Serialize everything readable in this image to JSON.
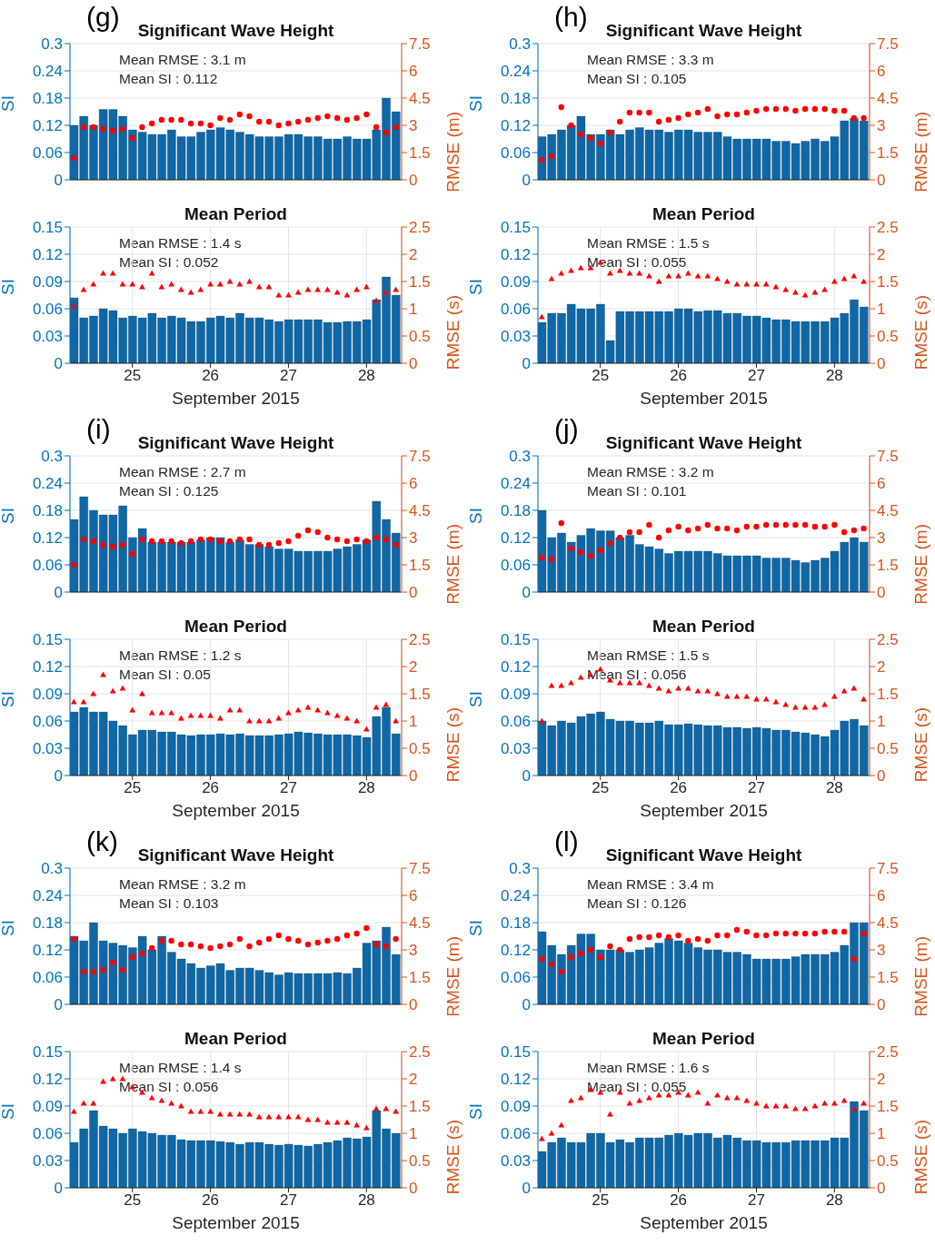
{
  "chart_data": [
    {
      "type": "bar",
      "title": "Significant Wave Height",
      "ylabel": "SI",
      "y2label": "RMSE (m)",
      "annotations": [
        "(g)",
        "Mean RMSE : 3.1 m",
        "Mean SI : 0.112"
      ],
      "xlim": [
        24.2,
        28.45
      ],
      "xticks": [
        25,
        26,
        27,
        28
      ],
      "ylim": [
        0,
        0.3
      ],
      "yticks": [
        0,
        0.06,
        0.12,
        0.18,
        0.24,
        0.3
      ],
      "y2lim": [
        0,
        7.5
      ],
      "y2ticks": [
        0,
        1.5,
        3,
        4.5,
        6,
        7.5
      ],
      "grid": true,
      "tick_labels": "y",
      "x": [
        24.25,
        24.375,
        24.5,
        24.625,
        24.75,
        24.875,
        25,
        25.125,
        25.25,
        25.375,
        25.5,
        25.625,
        25.75,
        25.875,
        26,
        26.125,
        26.25,
        26.375,
        26.5,
        26.625,
        26.75,
        26.875,
        27,
        27.125,
        27.25,
        27.375,
        27.5,
        27.625,
        27.75,
        27.875,
        28,
        28.125,
        28.25,
        28.375
      ],
      "series": [
        {
          "type": "bar",
          "color": "#0f67a6",
          "values": [
            0.12,
            0.14,
            0.12,
            0.155,
            0.155,
            0.14,
            0.11,
            0.105,
            0.1,
            0.1,
            0.11,
            0.095,
            0.095,
            0.105,
            0.11,
            0.115,
            0.11,
            0.105,
            0.1,
            0.095,
            0.095,
            0.095,
            0.1,
            0.1,
            0.095,
            0.095,
            0.09,
            0.09,
            0.095,
            0.09,
            0.09,
            0.11,
            0.18,
            0.15
          ]
        },
        {
          "type": "scatter",
          "axis": "y2",
          "marker": "circle",
          "color": "#ff0000",
          "values": [
            1.2,
            2.9,
            2.9,
            2.8,
            2.7,
            2.8,
            2.3,
            2.9,
            3.1,
            3.3,
            3.3,
            3.3,
            3.1,
            3.1,
            3,
            3.4,
            3.3,
            3.6,
            3.5,
            3.2,
            3.2,
            3,
            3.1,
            3.2,
            3.3,
            3.4,
            3.5,
            3.4,
            3.3,
            3.4,
            3.6,
            2.9,
            2.6,
            2.9
          ]
        }
      ]
    },
    {
      "type": "bar",
      "title": "Significant Wave Height",
      "ylabel": "SI",
      "y2label": "RMSE (m)",
      "annotations": [
        "(h)",
        "Mean RMSE : 3.3 m",
        "Mean SI : 0.105"
      ],
      "xlim": [
        24.2,
        28.45
      ],
      "xticks": [
        25,
        26,
        27,
        28
      ],
      "ylim": [
        0,
        0.3
      ],
      "yticks": [
        0,
        0.06,
        0.12,
        0.18,
        0.24,
        0.3
      ],
      "y2lim": [
        0,
        7.5
      ],
      "y2ticks": [
        0,
        1.5,
        3,
        4.5,
        6,
        7.5
      ],
      "grid": true,
      "tick_labels": "y",
      "x": [
        24.25,
        24.375,
        24.5,
        24.625,
        24.75,
        24.875,
        25,
        25.125,
        25.25,
        25.375,
        25.5,
        25.625,
        25.75,
        25.875,
        26,
        26.125,
        26.25,
        26.375,
        26.5,
        26.625,
        26.75,
        26.875,
        27,
        27.125,
        27.25,
        27.375,
        27.5,
        27.625,
        27.75,
        27.875,
        28,
        28.125,
        28.25,
        28.375
      ],
      "series": [
        {
          "type": "bar",
          "color": "#0f67a6",
          "values": [
            0.095,
            0.1,
            0.11,
            0.12,
            0.14,
            0.1,
            0.1,
            0.11,
            0.1,
            0.11,
            0.115,
            0.11,
            0.11,
            0.105,
            0.11,
            0.11,
            0.105,
            0.105,
            0.105,
            0.095,
            0.09,
            0.09,
            0.09,
            0.09,
            0.085,
            0.085,
            0.08,
            0.085,
            0.09,
            0.085,
            0.095,
            0.13,
            0.135,
            0.13
          ]
        },
        {
          "type": "scatter",
          "axis": "y2",
          "marker": "circle",
          "color": "#ff0000",
          "values": [
            1.1,
            1.3,
            4,
            3,
            2.5,
            2.3,
            2,
            2.6,
            3.2,
            3.7,
            3.7,
            3.7,
            3.2,
            3.3,
            3.4,
            3.6,
            3.7,
            3.9,
            3.5,
            3.6,
            3.6,
            3.7,
            3.8,
            3.9,
            3.9,
            3.9,
            3.8,
            3.9,
            3.9,
            3.9,
            3.8,
            3.8,
            3.4,
            3.4
          ]
        }
      ]
    },
    {
      "type": "bar",
      "title": "Mean Period",
      "ylabel": "SI",
      "y2label": "RMSE (s)",
      "xlabel": "September 2015",
      "annotations": [
        "Mean RMSE : 1.4 s",
        "Mean SI : 0.052"
      ],
      "xlim": [
        24.2,
        28.45
      ],
      "xticks": [
        25,
        26,
        27,
        28
      ],
      "ylim": [
        0,
        0.15
      ],
      "yticks": [
        0,
        0.03,
        0.06,
        0.09,
        0.12,
        0.15
      ],
      "y2lim": [
        0,
        2.5
      ],
      "y2ticks": [
        0,
        0.5,
        1,
        1.5,
        2,
        2.5
      ],
      "grid": true,
      "x": [
        24.25,
        24.375,
        24.5,
        24.625,
        24.75,
        24.875,
        25,
        25.125,
        25.25,
        25.375,
        25.5,
        25.625,
        25.75,
        25.875,
        26,
        26.125,
        26.25,
        26.375,
        26.5,
        26.625,
        26.75,
        26.875,
        27,
        27.125,
        27.25,
        27.375,
        27.5,
        27.625,
        27.75,
        27.875,
        28,
        28.125,
        28.25,
        28.375
      ],
      "series": [
        {
          "type": "bar",
          "color": "#0f67a6",
          "values": [
            0.072,
            0.05,
            0.052,
            0.06,
            0.058,
            0.05,
            0.052,
            0.05,
            0.055,
            0.05,
            0.052,
            0.05,
            0.046,
            0.046,
            0.05,
            0.052,
            0.05,
            0.055,
            0.05,
            0.05,
            0.048,
            0.046,
            0.048,
            0.048,
            0.048,
            0.048,
            0.045,
            0.045,
            0.046,
            0.046,
            0.048,
            0.07,
            0.095,
            0.075
          ]
        },
        {
          "type": "scatter",
          "axis": "y2",
          "marker": "triangle",
          "color": "#ff0000",
          "values": [
            1.05,
            1.35,
            1.45,
            1.65,
            1.65,
            1.45,
            1.45,
            1.4,
            1.65,
            1.4,
            1.45,
            1.35,
            1.3,
            1.35,
            1.45,
            1.45,
            1.5,
            1.45,
            1.5,
            1.4,
            1.4,
            1.25,
            1.25,
            1.3,
            1.35,
            1.35,
            1.35,
            1.3,
            1.25,
            1.35,
            1.4,
            1.15,
            1.3,
            1.35
          ]
        }
      ]
    },
    {
      "type": "bar",
      "title": "Mean Period",
      "ylabel": "SI",
      "y2label": "RMSE (s)",
      "xlabel": "September 2015",
      "annotations": [
        "Mean RMSE : 1.5 s",
        "Mean SI : 0.055"
      ],
      "xlim": [
        24.2,
        28.45
      ],
      "xticks": [
        25,
        26,
        27,
        28
      ],
      "ylim": [
        0,
        0.15
      ],
      "yticks": [
        0,
        0.03,
        0.06,
        0.09,
        0.12,
        0.15
      ],
      "y2lim": [
        0,
        2.5
      ],
      "y2ticks": [
        0,
        0.5,
        1,
        1.5,
        2,
        2.5
      ],
      "grid": true,
      "x": [
        24.25,
        24.375,
        24.5,
        24.625,
        24.75,
        24.875,
        25,
        25.125,
        25.25,
        25.375,
        25.5,
        25.625,
        25.75,
        25.875,
        26,
        26.125,
        26.25,
        26.375,
        26.5,
        26.625,
        26.75,
        26.875,
        27,
        27.125,
        27.25,
        27.375,
        27.5,
        27.625,
        27.75,
        27.875,
        28,
        28.125,
        28.25,
        28.375
      ],
      "series": [
        {
          "type": "bar",
          "color": "#0f67a6",
          "values": [
            0.045,
            0.055,
            0.055,
            0.065,
            0.06,
            0.06,
            0.065,
            0.025,
            0.057,
            0.057,
            0.057,
            0.057,
            0.057,
            0.057,
            0.06,
            0.06,
            0.057,
            0.058,
            0.058,
            0.055,
            0.055,
            0.052,
            0.052,
            0.05,
            0.048,
            0.048,
            0.046,
            0.046,
            0.046,
            0.046,
            0.05,
            0.055,
            0.07,
            0.062
          ]
        },
        {
          "type": "scatter",
          "axis": "y2",
          "marker": "triangle",
          "color": "#ff0000",
          "values": [
            0.85,
            1.55,
            1.65,
            1.7,
            1.75,
            1.75,
            1.85,
            1.65,
            1.7,
            1.65,
            1.65,
            1.6,
            1.5,
            1.6,
            1.6,
            1.65,
            1.6,
            1.6,
            1.55,
            1.5,
            1.45,
            1.45,
            1.45,
            1.45,
            1.4,
            1.35,
            1.3,
            1.25,
            1.3,
            1.35,
            1.5,
            1.55,
            1.6,
            1.5
          ]
        }
      ]
    },
    {
      "type": "bar",
      "title": "Significant Wave Height",
      "ylabel": "SI",
      "y2label": "RMSE (m)",
      "annotations": [
        "(i)",
        "Mean RMSE : 2.7 m",
        "Mean SI : 0.125"
      ],
      "xlim": [
        24.2,
        28.45
      ],
      "xticks": [
        25,
        26,
        27,
        28
      ],
      "ylim": [
        0,
        0.3
      ],
      "yticks": [
        0,
        0.06,
        0.12,
        0.18,
        0.24,
        0.3
      ],
      "y2lim": [
        0,
        7.5
      ],
      "y2ticks": [
        0,
        1.5,
        3,
        4.5,
        6,
        7.5
      ],
      "grid": true,
      "tick_labels": "y",
      "x": [
        24.25,
        24.375,
        24.5,
        24.625,
        24.75,
        24.875,
        25,
        25.125,
        25.25,
        25.375,
        25.5,
        25.625,
        25.75,
        25.875,
        26,
        26.125,
        26.25,
        26.375,
        26.5,
        26.625,
        26.75,
        26.875,
        27,
        27.125,
        27.25,
        27.375,
        27.5,
        27.625,
        27.75,
        27.875,
        28,
        28.125,
        28.25,
        28.375
      ],
      "series": [
        {
          "type": "bar",
          "color": "#0f67a6",
          "values": [
            0.16,
            0.21,
            0.18,
            0.17,
            0.17,
            0.19,
            0.12,
            0.14,
            0.11,
            0.11,
            0.11,
            0.11,
            0.11,
            0.115,
            0.12,
            0.12,
            0.11,
            0.115,
            0.105,
            0.105,
            0.1,
            0.095,
            0.095,
            0.09,
            0.09,
            0.09,
            0.09,
            0.095,
            0.1,
            0.105,
            0.115,
            0.2,
            0.16,
            0.13
          ]
        },
        {
          "type": "scatter",
          "axis": "y2",
          "marker": "circle",
          "color": "#ff0000",
          "values": [
            1.5,
            2.9,
            2.8,
            2.6,
            2.5,
            2.6,
            2.1,
            2.9,
            2.8,
            2.8,
            2.8,
            2.7,
            2.8,
            2.9,
            2.9,
            2.8,
            2.8,
            2.9,
            2.9,
            2.6,
            2.6,
            2.7,
            2.8,
            3.1,
            3.4,
            3.3,
            3,
            2.9,
            2.8,
            2.9,
            2.8,
            3,
            2.9,
            2.6
          ]
        }
      ]
    },
    {
      "type": "bar",
      "title": "Significant Wave Height",
      "ylabel": "SI",
      "y2label": "RMSE (m)",
      "annotations": [
        "(j)",
        "Mean RMSE : 3.2 m",
        "Mean SI : 0.101"
      ],
      "xlim": [
        24.2,
        28.45
      ],
      "xticks": [
        25,
        26,
        27,
        28
      ],
      "ylim": [
        0,
        0.3
      ],
      "yticks": [
        0,
        0.06,
        0.12,
        0.18,
        0.24,
        0.3
      ],
      "y2lim": [
        0,
        7.5
      ],
      "y2ticks": [
        0,
        1.5,
        3,
        4.5,
        6,
        7.5
      ],
      "grid": true,
      "tick_labels": "y",
      "x": [
        24.25,
        24.375,
        24.5,
        24.625,
        24.75,
        24.875,
        25,
        25.125,
        25.25,
        25.375,
        25.5,
        25.625,
        25.75,
        25.875,
        26,
        26.125,
        26.25,
        26.375,
        26.5,
        26.625,
        26.75,
        26.875,
        27,
        27.125,
        27.25,
        27.375,
        27.5,
        27.625,
        27.75,
        27.875,
        28,
        28.125,
        28.25,
        28.375
      ],
      "series": [
        {
          "type": "bar",
          "color": "#0f67a6",
          "values": [
            0.18,
            0.12,
            0.13,
            0.11,
            0.125,
            0.14,
            0.135,
            0.135,
            0.12,
            0.125,
            0.105,
            0.1,
            0.095,
            0.085,
            0.09,
            0.09,
            0.09,
            0.09,
            0.085,
            0.08,
            0.08,
            0.08,
            0.08,
            0.075,
            0.075,
            0.075,
            0.07,
            0.065,
            0.07,
            0.075,
            0.09,
            0.11,
            0.12,
            0.11
          ]
        },
        {
          "type": "scatter",
          "axis": "y2",
          "marker": "circle",
          "color": "#ff0000",
          "values": [
            1.9,
            1.8,
            3.8,
            2.4,
            2.2,
            2,
            2.3,
            2.7,
            3,
            3.3,
            3.3,
            3.7,
            3,
            3.4,
            3.6,
            3.4,
            3.5,
            3.7,
            3.5,
            3.5,
            3.4,
            3.6,
            3.6,
            3.7,
            3.7,
            3.7,
            3.7,
            3.7,
            3.6,
            3.6,
            3.7,
            3.3,
            3.4,
            3.5
          ]
        }
      ]
    },
    {
      "type": "bar",
      "title": "Mean Period",
      "ylabel": "SI",
      "y2label": "RMSE (s)",
      "xlabel": "September 2015",
      "annotations": [
        "Mean RMSE : 1.2 s",
        "Mean SI : 0.05"
      ],
      "xlim": [
        24.2,
        28.45
      ],
      "xticks": [
        25,
        26,
        27,
        28
      ],
      "ylim": [
        0,
        0.15
      ],
      "yticks": [
        0,
        0.03,
        0.06,
        0.09,
        0.12,
        0.15
      ],
      "y2lim": [
        0,
        2.5
      ],
      "y2ticks": [
        0,
        0.5,
        1,
        1.5,
        2,
        2.5
      ],
      "grid": true,
      "x": [
        24.25,
        24.375,
        24.5,
        24.625,
        24.75,
        24.875,
        25,
        25.125,
        25.25,
        25.375,
        25.5,
        25.625,
        25.75,
        25.875,
        26,
        26.125,
        26.25,
        26.375,
        26.5,
        26.625,
        26.75,
        26.875,
        27,
        27.125,
        27.25,
        27.375,
        27.5,
        27.625,
        27.75,
        27.875,
        28,
        28.125,
        28.25,
        28.375
      ],
      "series": [
        {
          "type": "bar",
          "color": "#0f67a6",
          "values": [
            0.07,
            0.075,
            0.07,
            0.07,
            0.06,
            0.055,
            0.045,
            0.05,
            0.05,
            0.048,
            0.048,
            0.045,
            0.044,
            0.045,
            0.045,
            0.046,
            0.045,
            0.046,
            0.044,
            0.044,
            0.044,
            0.045,
            0.046,
            0.048,
            0.047,
            0.046,
            0.045,
            0.045,
            0.045,
            0.044,
            0.042,
            0.065,
            0.075,
            0.046
          ]
        },
        {
          "type": "scatter",
          "axis": "y2",
          "marker": "triangle",
          "color": "#ff0000",
          "values": [
            1.35,
            1.35,
            1.5,
            1.85,
            1.55,
            1.6,
            1.2,
            1.5,
            1.15,
            1.15,
            1.15,
            1.05,
            1.1,
            1.1,
            1.1,
            1.05,
            1.2,
            1.2,
            1,
            1,
            1,
            1.05,
            1.15,
            1.2,
            1.25,
            1.2,
            1.15,
            1.1,
            1.05,
            1,
            0.85,
            1.25,
            1.3,
            1
          ]
        }
      ]
    },
    {
      "type": "bar",
      "title": "Mean Period",
      "ylabel": "SI",
      "y2label": "RMSE (s)",
      "xlabel": "September 2015",
      "annotations": [
        "Mean RMSE : 1.5 s",
        "Mean SI : 0.056"
      ],
      "xlim": [
        24.2,
        28.45
      ],
      "xticks": [
        25,
        26,
        27,
        28
      ],
      "ylim": [
        0,
        0.15
      ],
      "yticks": [
        0,
        0.03,
        0.06,
        0.09,
        0.12,
        0.15
      ],
      "y2lim": [
        0,
        2.5
      ],
      "y2ticks": [
        0,
        0.5,
        1,
        1.5,
        2,
        2.5
      ],
      "grid": true,
      "x": [
        24.25,
        24.375,
        24.5,
        24.625,
        24.75,
        24.875,
        25,
        25.125,
        25.25,
        25.375,
        25.5,
        25.625,
        25.75,
        25.875,
        26,
        26.125,
        26.25,
        26.375,
        26.5,
        26.625,
        26.75,
        26.875,
        27,
        27.125,
        27.25,
        27.375,
        27.5,
        27.625,
        27.75,
        27.875,
        28,
        28.125,
        28.25,
        28.375
      ],
      "series": [
        {
          "type": "bar",
          "color": "#0f67a6",
          "values": [
            0.06,
            0.055,
            0.06,
            0.058,
            0.065,
            0.068,
            0.07,
            0.062,
            0.06,
            0.06,
            0.058,
            0.058,
            0.06,
            0.056,
            0.056,
            0.057,
            0.056,
            0.055,
            0.055,
            0.053,
            0.053,
            0.052,
            0.053,
            0.052,
            0.05,
            0.05,
            0.048,
            0.047,
            0.045,
            0.043,
            0.05,
            0.06,
            0.062,
            0.055
          ]
        },
        {
          "type": "scatter",
          "axis": "y2",
          "marker": "triangle",
          "color": "#ff0000",
          "values": [
            1,
            1.65,
            1.65,
            1.7,
            1.8,
            1.85,
            1.95,
            1.75,
            1.7,
            1.7,
            1.7,
            1.65,
            1.6,
            1.55,
            1.6,
            1.6,
            1.55,
            1.55,
            1.5,
            1.45,
            1.45,
            1.45,
            1.4,
            1.4,
            1.35,
            1.3,
            1.25,
            1.25,
            1.25,
            1.3,
            1.45,
            1.55,
            1.6,
            1.4
          ]
        }
      ]
    },
    {
      "type": "bar",
      "title": "Significant Wave Height",
      "ylabel": "SI",
      "y2label": "RMSE (m)",
      "annotations": [
        "(k)",
        "Mean RMSE : 3.2 m",
        "Mean SI : 0.103"
      ],
      "xlim": [
        24.2,
        28.45
      ],
      "xticks": [
        25,
        26,
        27,
        28
      ],
      "ylim": [
        0,
        0.3
      ],
      "yticks": [
        0,
        0.06,
        0.12,
        0.18,
        0.24,
        0.3
      ],
      "y2lim": [
        0,
        7.5
      ],
      "y2ticks": [
        0,
        1.5,
        3,
        4.5,
        6,
        7.5
      ],
      "grid": true,
      "tick_labels": "y",
      "x": [
        24.25,
        24.375,
        24.5,
        24.625,
        24.75,
        24.875,
        25,
        25.125,
        25.25,
        25.375,
        25.5,
        25.625,
        25.75,
        25.875,
        26,
        26.125,
        26.25,
        26.375,
        26.5,
        26.625,
        26.75,
        26.875,
        27,
        27.125,
        27.25,
        27.375,
        27.5,
        27.625,
        27.75,
        27.875,
        28,
        28.125,
        28.25,
        28.375
      ],
      "series": [
        {
          "type": "bar",
          "color": "#0f67a6",
          "values": [
            0.15,
            0.14,
            0.18,
            0.14,
            0.135,
            0.13,
            0.125,
            0.15,
            0.12,
            0.15,
            0.115,
            0.1,
            0.09,
            0.08,
            0.085,
            0.09,
            0.075,
            0.08,
            0.08,
            0.075,
            0.07,
            0.065,
            0.07,
            0.068,
            0.068,
            0.068,
            0.068,
            0.07,
            0.068,
            0.08,
            0.135,
            0.14,
            0.17,
            0.11
          ]
        },
        {
          "type": "scatter",
          "axis": "y2",
          "marker": "circle",
          "color": "#ff0000",
          "values": [
            3.6,
            1.8,
            1.8,
            1.9,
            2.3,
            1.9,
            2.6,
            2.8,
            3.1,
            3.5,
            3.5,
            3.3,
            3.3,
            3.2,
            3.1,
            3.2,
            3.3,
            3.6,
            3.2,
            3.4,
            3.6,
            3.8,
            3.6,
            3.5,
            3.3,
            3.4,
            3.5,
            3.6,
            3.8,
            3.9,
            4.2,
            3.3,
            3.2,
            3.6
          ]
        }
      ]
    },
    {
      "type": "bar",
      "title": "Significant Wave Height",
      "ylabel": "SI",
      "y2label": "RMSE (m)",
      "annotations": [
        "(l)",
        "Mean RMSE : 3.4 m",
        "Mean SI : 0.126"
      ],
      "xlim": [
        24.2,
        28.45
      ],
      "xticks": [
        25,
        26,
        27,
        28
      ],
      "ylim": [
        0,
        0.3
      ],
      "yticks": [
        0,
        0.06,
        0.12,
        0.18,
        0.24,
        0.3
      ],
      "y2lim": [
        0,
        7.5
      ],
      "y2ticks": [
        0,
        1.5,
        3,
        4.5,
        6,
        7.5
      ],
      "grid": true,
      "tick_labels": "y",
      "x": [
        24.25,
        24.375,
        24.5,
        24.625,
        24.75,
        24.875,
        25,
        25.125,
        25.25,
        25.375,
        25.5,
        25.625,
        25.75,
        25.875,
        26,
        26.125,
        26.25,
        26.375,
        26.5,
        26.625,
        26.75,
        26.875,
        27,
        27.125,
        27.25,
        27.375,
        27.5,
        27.625,
        27.75,
        27.875,
        28,
        28.125,
        28.25,
        28.375
      ],
      "series": [
        {
          "type": "bar",
          "color": "#0f67a6",
          "values": [
            0.16,
            0.13,
            0.11,
            0.13,
            0.155,
            0.155,
            0.12,
            0.12,
            0.12,
            0.115,
            0.12,
            0.125,
            0.135,
            0.145,
            0.14,
            0.135,
            0.125,
            0.12,
            0.12,
            0.115,
            0.115,
            0.11,
            0.1,
            0.1,
            0.1,
            0.1,
            0.105,
            0.11,
            0.11,
            0.11,
            0.115,
            0.13,
            0.18,
            0.18
          ]
        },
        {
          "type": "scatter",
          "axis": "y2",
          "marker": "circle",
          "color": "#ff0000",
          "values": [
            2.5,
            2.2,
            1.8,
            2.6,
            2.8,
            3,
            2.6,
            3.2,
            3,
            3.6,
            3.7,
            3.7,
            3.8,
            3.7,
            3.8,
            3.5,
            3.6,
            3.5,
            3.8,
            3.8,
            4.1,
            4,
            3.8,
            3.8,
            3.9,
            3.9,
            3.9,
            3.9,
            3.9,
            4,
            4,
            4,
            2.5,
            3.9
          ]
        }
      ]
    },
    {
      "type": "bar",
      "title": "Mean Period",
      "ylabel": "SI",
      "y2label": "RMSE (s)",
      "xlabel": "September 2015",
      "annotations": [
        "Mean RMSE : 1.4 s",
        "Mean SI : 0.056"
      ],
      "xlim": [
        24.2,
        28.45
      ],
      "xticks": [
        25,
        26,
        27,
        28
      ],
      "ylim": [
        0,
        0.15
      ],
      "yticks": [
        0,
        0.03,
        0.06,
        0.09,
        0.12,
        0.15
      ],
      "y2lim": [
        0,
        2.5
      ],
      "y2ticks": [
        0,
        0.5,
        1,
        1.5,
        2,
        2.5
      ],
      "grid": true,
      "x": [
        24.25,
        24.375,
        24.5,
        24.625,
        24.75,
        24.875,
        25,
        25.125,
        25.25,
        25.375,
        25.5,
        25.625,
        25.75,
        25.875,
        26,
        26.125,
        26.25,
        26.375,
        26.5,
        26.625,
        26.75,
        26.875,
        27,
        27.125,
        27.25,
        27.375,
        27.5,
        27.625,
        27.75,
        27.875,
        28,
        28.125,
        28.25,
        28.375
      ],
      "series": [
        {
          "type": "bar",
          "color": "#0f67a6",
          "values": [
            0.05,
            0.065,
            0.085,
            0.068,
            0.065,
            0.06,
            0.065,
            0.062,
            0.06,
            0.058,
            0.058,
            0.053,
            0.052,
            0.052,
            0.052,
            0.051,
            0.05,
            0.048,
            0.05,
            0.05,
            0.048,
            0.047,
            0.048,
            0.047,
            0.046,
            0.048,
            0.05,
            0.052,
            0.055,
            0.054,
            0.056,
            0.085,
            0.065,
            0.06
          ]
        },
        {
          "type": "scatter",
          "axis": "y2",
          "marker": "triangle",
          "color": "#ff0000",
          "values": [
            1.4,
            1.55,
            1.55,
            1.95,
            2,
            2,
            1.85,
            1.75,
            1.65,
            1.6,
            1.55,
            1.5,
            1.4,
            1.4,
            1.4,
            1.35,
            1.35,
            1.35,
            1.35,
            1.3,
            1.3,
            1.3,
            1.3,
            1.3,
            1.25,
            1.25,
            1.2,
            1.2,
            1.2,
            1.15,
            1.1,
            1.45,
            1.45,
            1.4
          ]
        }
      ]
    },
    {
      "type": "bar",
      "title": "Mean Period",
      "ylabel": "SI",
      "y2label": "RMSE (s)",
      "xlabel": "September 2015",
      "annotations": [
        "Mean RMSE : 1.6 s",
        "Mean SI : 0.055"
      ],
      "xlim": [
        24.2,
        28.45
      ],
      "xticks": [
        25,
        26,
        27,
        28
      ],
      "ylim": [
        0,
        0.15
      ],
      "yticks": [
        0,
        0.03,
        0.06,
        0.09,
        0.12,
        0.15
      ],
      "y2lim": [
        0,
        2.5
      ],
      "y2ticks": [
        0,
        0.5,
        1,
        1.5,
        2,
        2.5
      ],
      "grid": true,
      "x": [
        24.25,
        24.375,
        24.5,
        24.625,
        24.75,
        24.875,
        25,
        25.125,
        25.25,
        25.375,
        25.5,
        25.625,
        25.75,
        25.875,
        26,
        26.125,
        26.25,
        26.375,
        26.5,
        26.625,
        26.75,
        26.875,
        27,
        27.125,
        27.25,
        27.375,
        27.5,
        27.625,
        27.75,
        27.875,
        28,
        28.125,
        28.25,
        28.375
      ],
      "series": [
        {
          "type": "bar",
          "color": "#0f67a6",
          "values": [
            0.04,
            0.05,
            0.055,
            0.05,
            0.05,
            0.06,
            0.06,
            0.05,
            0.053,
            0.05,
            0.055,
            0.055,
            0.055,
            0.058,
            0.06,
            0.058,
            0.06,
            0.06,
            0.055,
            0.058,
            0.055,
            0.052,
            0.052,
            0.05,
            0.05,
            0.05,
            0.052,
            0.052,
            0.052,
            0.052,
            0.055,
            0.055,
            0.095,
            0.085
          ]
        },
        {
          "type": "scatter",
          "axis": "y2",
          "marker": "triangle",
          "color": "#ff0000",
          "values": [
            0.9,
            1,
            1.15,
            1.6,
            1.65,
            1.8,
            1.75,
            1.35,
            1.75,
            1.55,
            1.6,
            1.65,
            1.7,
            1.7,
            1.75,
            1.7,
            1.75,
            1.55,
            1.7,
            1.65,
            1.65,
            1.6,
            1.55,
            1.5,
            1.5,
            1.5,
            1.45,
            1.45,
            1.5,
            1.55,
            1.55,
            1.6,
            1.45,
            1.55
          ]
        }
      ]
    }
  ]
}
